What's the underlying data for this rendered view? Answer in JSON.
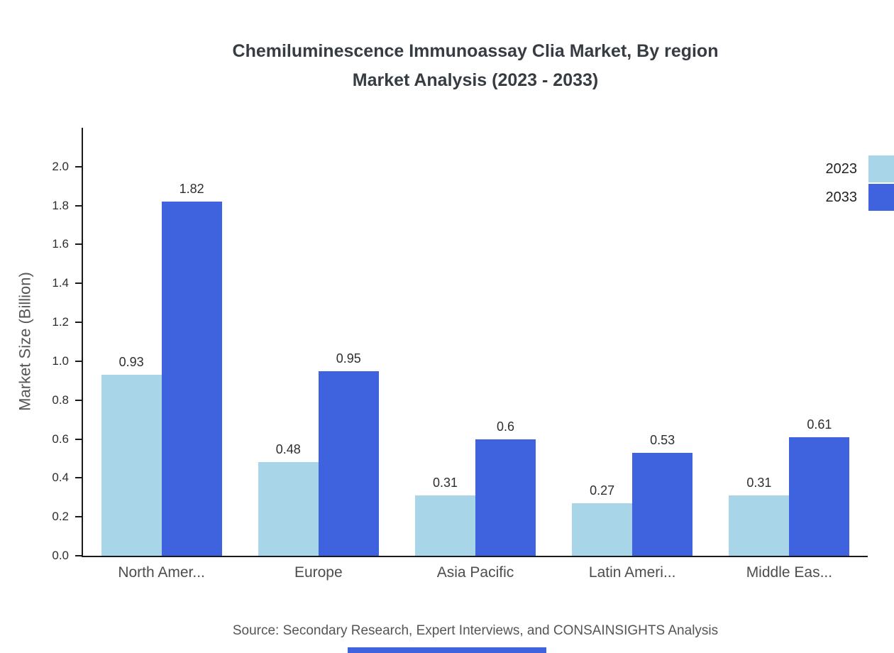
{
  "title": "Chemiluminescence Immunoassay Clia Market, By region\nMarket Analysis (2023 - 2033)",
  "source": "Source: Secondary Research, Expert Interviews, and CONSAINSIGHTS Analysis",
  "chart_data": {
    "type": "bar",
    "title": "Chemiluminescence Immunoassay Clia Market, By region Market Analysis (2023 - 2033)",
    "xlabel": "",
    "ylabel": "Market Size (Billion)",
    "categories": [
      "North Amer...",
      "Europe",
      "Asia Pacific",
      "Latin Ameri...",
      "Middle Eas..."
    ],
    "series": [
      {
        "name": "2023",
        "color": "#A9D5E8",
        "values": [
          0.93,
          0.48,
          0.31,
          0.27,
          0.31
        ]
      },
      {
        "name": "2033",
        "color": "#3F63DE",
        "values": [
          1.82,
          0.95,
          0.6,
          0.53,
          0.61
        ]
      }
    ],
    "ylim": [
      0,
      2.2
    ],
    "yticks": [
      "0.0",
      "0.2",
      "0.4",
      "0.6",
      "0.8",
      "1.0",
      "1.2",
      "1.4",
      "1.6",
      "1.8",
      "2.0"
    ],
    "grid": false,
    "legend_position": "top-right"
  },
  "colors": {
    "axis": "#1a1a1a",
    "title_text": "#363c42",
    "muted_text": "#555555",
    "accent": "#3F63DE",
    "series_2023": "#A9D5E8",
    "series_2033": "#3F63DE"
  }
}
